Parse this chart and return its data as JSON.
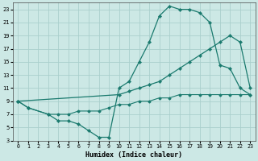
{
  "xlabel": "Humidex (Indice chaleur)",
  "bg_color": "#cce8e5",
  "grid_color": "#aacfcc",
  "line_color": "#1a7a6e",
  "xlim": [
    -0.5,
    23.5
  ],
  "ylim": [
    3,
    24
  ],
  "xticks": [
    0,
    1,
    2,
    3,
    4,
    5,
    6,
    7,
    8,
    9,
    10,
    11,
    12,
    13,
    14,
    15,
    16,
    17,
    18,
    19,
    20,
    21,
    22,
    23
  ],
  "yticks": [
    3,
    5,
    7,
    9,
    11,
    13,
    15,
    17,
    19,
    21,
    23
  ],
  "line1_x": [
    0,
    1,
    3,
    4,
    5,
    6,
    7,
    8,
    9,
    10,
    11,
    12,
    13,
    14,
    15,
    16,
    17,
    18,
    19,
    20,
    21,
    22,
    23
  ],
  "line1_y": [
    9,
    8,
    7,
    6,
    6,
    5.5,
    4.5,
    3.5,
    3.5,
    11,
    12,
    15,
    18,
    22,
    23.5,
    23,
    23,
    22.5,
    21,
    14.5,
    14,
    11,
    10
  ],
  "line2_x": [
    0,
    10,
    11,
    12,
    13,
    14,
    15,
    16,
    17,
    18,
    19,
    20,
    21,
    22,
    23
  ],
  "line2_y": [
    9,
    10,
    10.5,
    11,
    11.5,
    12,
    13,
    14,
    15,
    16,
    17,
    18,
    19,
    18,
    11
  ],
  "line3_x": [
    0,
    1,
    3,
    4,
    5,
    6,
    7,
    8,
    9,
    10,
    11,
    12,
    13,
    14,
    15,
    16,
    17,
    18,
    19,
    20,
    21,
    22,
    23
  ],
  "line3_y": [
    9,
    8,
    7,
    7,
    7,
    7.5,
    7.5,
    7.5,
    8,
    8.5,
    8.5,
    9,
    9,
    9.5,
    9.5,
    10,
    10,
    10,
    10,
    10,
    10,
    10,
    10
  ]
}
